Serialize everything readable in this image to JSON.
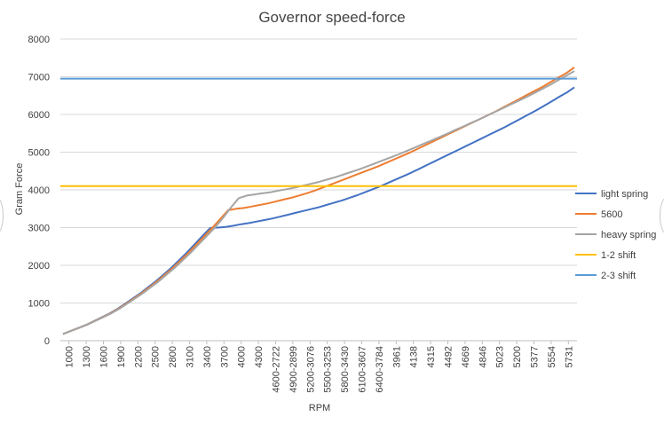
{
  "chart_data": {
    "type": "line",
    "title": "Governor speed-force",
    "xlabel": "RPM",
    "ylabel": "Gram Force",
    "ylim": [
      0,
      8000
    ],
    "yticks": [
      0,
      1000,
      2000,
      3000,
      4000,
      5000,
      6000,
      7000,
      8000
    ],
    "xtick_labels": [
      "1000",
      "1300",
      "1600",
      "1900",
      "2200",
      "2500",
      "2800",
      "3100",
      "3400",
      "3700",
      "4000",
      "4300",
      "4600-2722",
      "4900-2899",
      "5200-3076",
      "5500-3253",
      "5800-3430",
      "6100-3607",
      "6400-3784",
      "3961",
      "4138",
      "4315",
      "4492",
      "4669",
      "4846",
      "5023",
      "5200",
      "5377",
      "5554",
      "5731"
    ],
    "grid": true,
    "legend_position": "right",
    "series": [
      {
        "name": "light spring",
        "color": "#4472C4",
        "values": [
          180,
          260,
          340,
          420,
          520,
          620,
          720,
          840,
          980,
          1120,
          1260,
          1420,
          1580,
          1760,
          1940,
          2140,
          2340,
          2560,
          2780,
          2990,
          3000,
          3020,
          3050,
          3090,
          3120,
          3160,
          3200,
          3240,
          3290,
          3340,
          3390,
          3440,
          3490,
          3540,
          3600,
          3660,
          3720,
          3790,
          3860,
          3940,
          4020,
          4100,
          4190,
          4280,
          4370,
          4460,
          4560,
          4660,
          4760,
          4860,
          4960,
          5060,
          5160,
          5260,
          5360,
          5460,
          5560,
          5660,
          5770,
          5880,
          5990,
          6100,
          6220,
          6340,
          6460,
          6580,
          6720
        ]
      },
      {
        "name": "5600",
        "color": "#ED7D31",
        "values": [
          180,
          260,
          340,
          420,
          520,
          620,
          720,
          840,
          980,
          1120,
          1260,
          1420,
          1580,
          1760,
          1940,
          2140,
          2340,
          2560,
          2780,
          3000,
          3230,
          3460,
          3500,
          3520,
          3560,
          3600,
          3640,
          3690,
          3740,
          3790,
          3850,
          3910,
          3980,
          4060,
          4140,
          4220,
          4300,
          4380,
          4460,
          4540,
          4620,
          4710,
          4800,
          4890,
          4980,
          5080,
          5180,
          5280,
          5380,
          5480,
          5580,
          5680,
          5780,
          5880,
          5980,
          6080,
          6190,
          6300,
          6410,
          6520,
          6630,
          6740,
          6860,
          6980,
          7100,
          7250
        ]
      },
      {
        "name": "heavy spring",
        "color": "#A5A5A5",
        "values": [
          180,
          260,
          340,
          420,
          520,
          620,
          720,
          840,
          980,
          1120,
          1260,
          1420,
          1580,
          1760,
          1940,
          2140,
          2340,
          2560,
          2780,
          3000,
          3250,
          3530,
          3780,
          3850,
          3880,
          3910,
          3940,
          3980,
          4020,
          4060,
          4110,
          4160,
          4210,
          4270,
          4330,
          4400,
          4470,
          4540,
          4620,
          4700,
          4780,
          4860,
          4940,
          5030,
          5120,
          5210,
          5300,
          5390,
          5480,
          5580,
          5670,
          5770,
          5860,
          5960,
          6060,
          6160,
          6260,
          6360,
          6460,
          6570,
          6680,
          6790,
          6910,
          7030,
          7150
        ]
      },
      {
        "name": "1-2 shift",
        "color": "#FFC000",
        "constant": 4100
      },
      {
        "name": "2-3 shift",
        "color": "#5B9BD5",
        "constant": 6950
      }
    ]
  }
}
